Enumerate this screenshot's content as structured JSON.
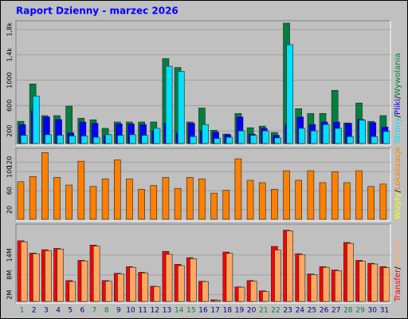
{
  "title": "Raport Dzienny -  marzec 2026",
  "legend_separator": "/",
  "chart_data": [
    {
      "type": "bar",
      "ylim": [
        0,
        1900
      ],
      "yticks": [
        {
          "value": 200,
          "label": "200"
        },
        {
          "value": 600,
          "label": "600"
        },
        {
          "value": 1000,
          "label": "1000"
        },
        {
          "value": 1400,
          "label": "1,4k"
        },
        {
          "value": 1800,
          "label": "1,8k"
        }
      ],
      "series": [
        {
          "name": "Wywolania",
          "color": "#008040",
          "values": [
            350,
            940,
            440,
            440,
            590,
            400,
            375,
            240,
            340,
            340,
            340,
            340,
            1340,
            1200,
            340,
            560,
            210,
            150,
            475,
            250,
            275,
            175,
            1900,
            550,
            475,
            475,
            840,
            325,
            640,
            350,
            440
          ]
        },
        {
          "name": "Pliki",
          "color": "#0000ff",
          "values": [
            300,
            520,
            420,
            380,
            170,
            340,
            320,
            120,
            310,
            310,
            300,
            200,
            320,
            170,
            320,
            200,
            180,
            140,
            420,
            150,
            240,
            130,
            300,
            420,
            300,
            340,
            340,
            320,
            380,
            330,
            260
          ]
        },
        {
          "name": "Strony",
          "color": "#00e0ff",
          "values": [
            130,
            750,
            140,
            130,
            120,
            120,
            100,
            140,
            130,
            140,
            130,
            240,
            1220,
            1140,
            110,
            300,
            80,
            100,
            200,
            130,
            200,
            90,
            1560,
            240,
            200,
            300,
            240,
            110,
            370,
            110,
            190
          ]
        }
      ],
      "legend": [
        {
          "text": "Strony",
          "color": "#00e0ff"
        },
        {
          "text": "Pliki",
          "color": "#0000ff"
        },
        {
          "text": "Wywolania",
          "color": "#008040"
        }
      ]
    },
    {
      "type": "bar",
      "ylim": [
        0,
        144
      ],
      "yticks": [
        20,
        60,
        100,
        120
      ],
      "series": [
        {
          "name": "Lokalizacje",
          "color": "#ff8000",
          "values": [
            79,
            90,
            140,
            88,
            72,
            122,
            69,
            85,
            125,
            85,
            63,
            71,
            88,
            65,
            88,
            85,
            55,
            61,
            127,
            82,
            77,
            63,
            102,
            82,
            102,
            77,
            100,
            77,
            102,
            69,
            74
          ]
        }
      ],
      "legend": [
        {
          "text": "Wizyty",
          "color": "#ffff00"
        },
        {
          "text": "Lokalizacje",
          "color": "#ff8000"
        }
      ]
    },
    {
      "type": "bar",
      "ylim": [
        0,
        22.6
      ],
      "yticks": [
        {
          "value": 2,
          "label": "2M"
        },
        {
          "value": 8,
          "label": "8M"
        },
        {
          "value": 14,
          "label": "14M"
        }
      ],
      "categories": [
        "1",
        "2",
        "3",
        "4",
        "5",
        "6",
        "7",
        "8",
        "9",
        "10",
        "11",
        "12",
        "13",
        "14",
        "15",
        "16",
        "17",
        "18",
        "19",
        "20",
        "21",
        "22",
        "23",
        "24",
        "25",
        "26",
        "27",
        "28",
        "29",
        "30",
        "31"
      ],
      "category_colors": [
        "#008040",
        "#000080",
        "#000080",
        "#000080",
        "#000080",
        "#000080",
        "#008040",
        "#008040",
        "#000080",
        "#000080",
        "#000080",
        "#000080",
        "#000080",
        "#008040",
        "#008040",
        "#000080",
        "#000080",
        "#000080",
        "#000080",
        "#000080",
        "#008040",
        "#008040",
        "#000080",
        "#000080",
        "#000080",
        "#000080",
        "#000080",
        "#008040",
        "#008040",
        "#000080",
        "#000080"
      ],
      "series": [
        {
          "name": "Transfer",
          "color": "#ff0000",
          "values": [
            18.3,
            14.6,
            15.6,
            16,
            6.3,
            12.4,
            17,
            6.3,
            8.5,
            10.5,
            8.8,
            4.6,
            15.1,
            11.2,
            13.2,
            6.1,
            0.5,
            14.9,
            4.4,
            6.3,
            3.2,
            16.6,
            21.5,
            14.4,
            8.3,
            10.5,
            9.5,
            17.8,
            12.4,
            11.5,
            10.5
          ]
        },
        {
          "name": "IN/OUT",
          "color": "#ffa860",
          "values": [
            18,
            14.4,
            15.3,
            15.8,
            6,
            12.2,
            16.7,
            6.1,
            8.3,
            10.3,
            8.6,
            4.5,
            14.2,
            10.8,
            12.9,
            6,
            0.4,
            14.5,
            4.3,
            6.1,
            3,
            15.5,
            21.3,
            14.1,
            8.1,
            10.3,
            9.3,
            17.5,
            12.1,
            11.3,
            10.2
          ]
        }
      ],
      "legend": [
        {
          "text": "Transfer",
          "color": "#ff0000"
        },
        {
          "text": "IN/OUT",
          "color": "#ffa860"
        }
      ]
    }
  ]
}
